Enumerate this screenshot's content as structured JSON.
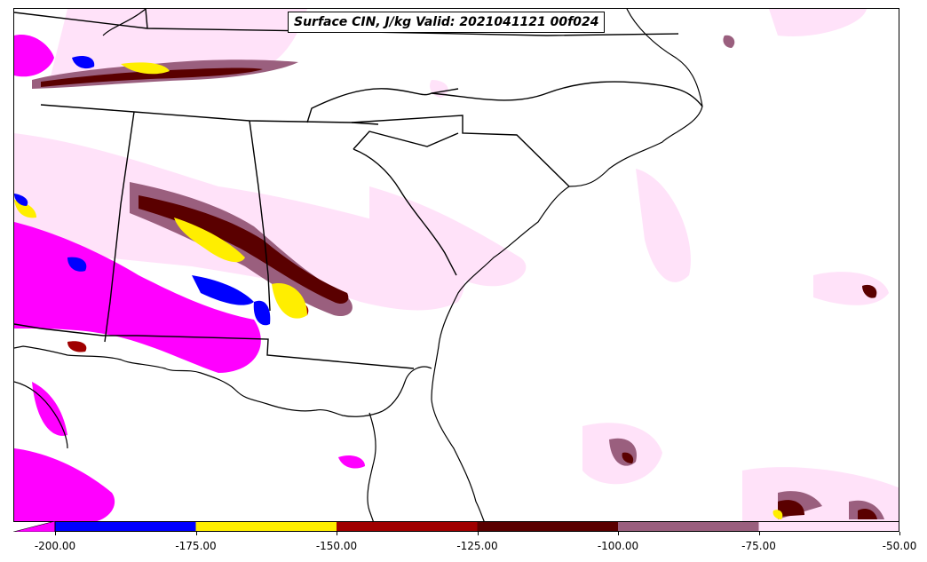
{
  "title": "Surface CIN, J/kg Valid: 2021041121 00f024",
  "colorbar": {
    "bins": [
      {
        "from": -200,
        "to": -175,
        "color": "#0000ff"
      },
      {
        "from": -175,
        "to": -150,
        "color": "#ffee00"
      },
      {
        "from": -150,
        "to": -125,
        "color": "#a00000"
      },
      {
        "from": -125,
        "to": -100,
        "color": "#5a0000"
      },
      {
        "from": -100,
        "to": -75,
        "color": "#9a5f7e"
      },
      {
        "from": -75,
        "to": -50,
        "color": "#ffe2f9"
      }
    ],
    "below_min_color": "#ff00ff",
    "tick_labels": [
      "-200.00",
      "-175.00",
      "-150.00",
      "-125.00",
      "-100.00",
      "-75.00",
      "-50.00"
    ]
  }
}
